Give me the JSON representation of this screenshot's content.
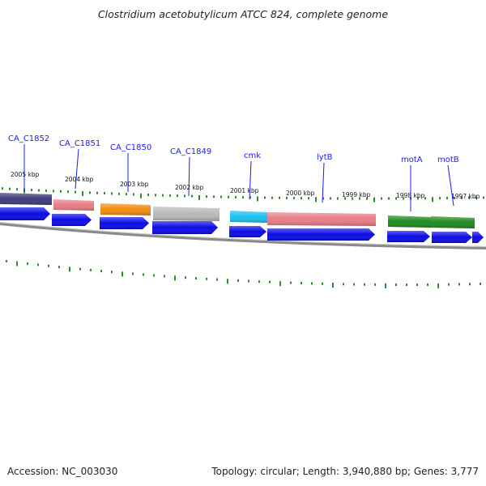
{
  "title": "Clostridium acetobutylicum ATCC 824, complete genome",
  "footer": {
    "accession": "Accession: NC_003030",
    "summary": "Topology: circular; Length: 3,940,880 bp; Genes: 3,777"
  },
  "colors": {
    "backbone": "#8a8a8a",
    "cds": "#0a0ae6",
    "label": "#1a1aff",
    "tick": "#2e8b2e"
  },
  "kbp_labels": [
    "2005 kbp",
    "2004 kbp",
    "2003 kbp",
    "2002 kbp",
    "2001 kbp",
    "2000 kbp",
    "1999 kbp",
    "1998 kbp",
    "1997 kbp"
  ],
  "genes": [
    {
      "name": "CA_C1852",
      "color": "#3f3a7a"
    },
    {
      "name": "CA_C1851",
      "color": "#e87c86"
    },
    {
      "name": "CA_C1850",
      "color": "#f28c0f"
    },
    {
      "name": "CA_C1849",
      "color": "#b8b8b8"
    },
    {
      "name": "cmk",
      "color": "#19c2f0"
    },
    {
      "name": "lytB",
      "color": "#e87c86"
    },
    {
      "name": "motA",
      "color": "#208a20"
    },
    {
      "name": "motB",
      "color": "#208a20"
    }
  ]
}
